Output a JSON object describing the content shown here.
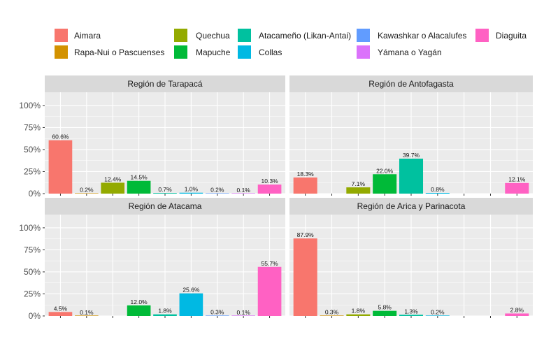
{
  "chart_data": {
    "type": "bar",
    "ylim": [
      0,
      1.15
    ],
    "y_ticks": [
      0,
      0.25,
      0.5,
      0.75,
      1.0
    ],
    "y_tick_labels": [
      "0%",
      "25%",
      "50%",
      "75%",
      "100%"
    ],
    "grid": true,
    "legend_position": "top",
    "categories": [
      "Aimara",
      "Rapa-Nui o Pascuenses",
      "Quechua",
      "Mapuche",
      "Atacameño (Likan-Antai)",
      "Collas",
      "Kawashkar o Alacalufes",
      "Yámana o Yagán",
      "Diaguita"
    ],
    "colors": [
      "#F8766D",
      "#D39200",
      "#93AA00",
      "#00BA38",
      "#00C19F",
      "#00B9E3",
      "#619CFF",
      "#DB72FB",
      "#FF61C3"
    ],
    "legend_items": [
      {
        "label": "Aimara",
        "color": "#F8766D"
      },
      {
        "label": "Rapa-Nui o Pascuenses",
        "color": "#D39200"
      },
      {
        "label": "Quechua",
        "color": "#93AA00"
      },
      {
        "label": "Mapuche",
        "color": "#00BA38"
      },
      {
        "label": "Atacameño (Likan-Antai)",
        "color": "#00C19F"
      },
      {
        "label": "Collas",
        "color": "#00B9E3"
      },
      {
        "label": "Kawashkar o Alacalufes",
        "color": "#619CFF"
      },
      {
        "label": "Yámana o Yagán",
        "color": "#DB72FB"
      },
      {
        "label": "Diaguita",
        "color": "#FF61C3"
      }
    ],
    "panels": [
      {
        "title": "Región de Tarapacá",
        "values": [
          0.606,
          0.002,
          0.124,
          0.145,
          0.007,
          0.01,
          0.002,
          0.001,
          0.103
        ],
        "labels": [
          "60.6%",
          "0.2%",
          "12.4%",
          "14.5%",
          "0.7%",
          "1.0%",
          "0.2%",
          "0.1%",
          "10.3%"
        ]
      },
      {
        "title": "Región de Antofagasta",
        "values": [
          0.183,
          null,
          0.071,
          0.22,
          0.397,
          0.008,
          null,
          null,
          0.121
        ],
        "labels": [
          "18.3%",
          "",
          "7.1%",
          "22.0%",
          "39.7%",
          "0.8%",
          "",
          "",
          "12.1%"
        ]
      },
      {
        "title": "Región de Atacama",
        "values": [
          0.045,
          0.001,
          null,
          0.12,
          0.018,
          0.256,
          0.003,
          0.001,
          0.557
        ],
        "labels": [
          "4.5%",
          "0.1%",
          "",
          "12.0%",
          "1.8%",
          "25.6%",
          "0.3%",
          "0.1%",
          "55.7%"
        ]
      },
      {
        "title": "Región de Arica y Parinacota",
        "values": [
          0.879,
          0.003,
          0.018,
          0.058,
          0.013,
          0.002,
          null,
          null,
          0.028
        ],
        "labels": [
          "87.9%",
          "0.3%",
          "1.8%",
          "5.8%",
          "1.3%",
          "0.2%",
          "",
          "",
          "2.8%"
        ]
      }
    ]
  }
}
